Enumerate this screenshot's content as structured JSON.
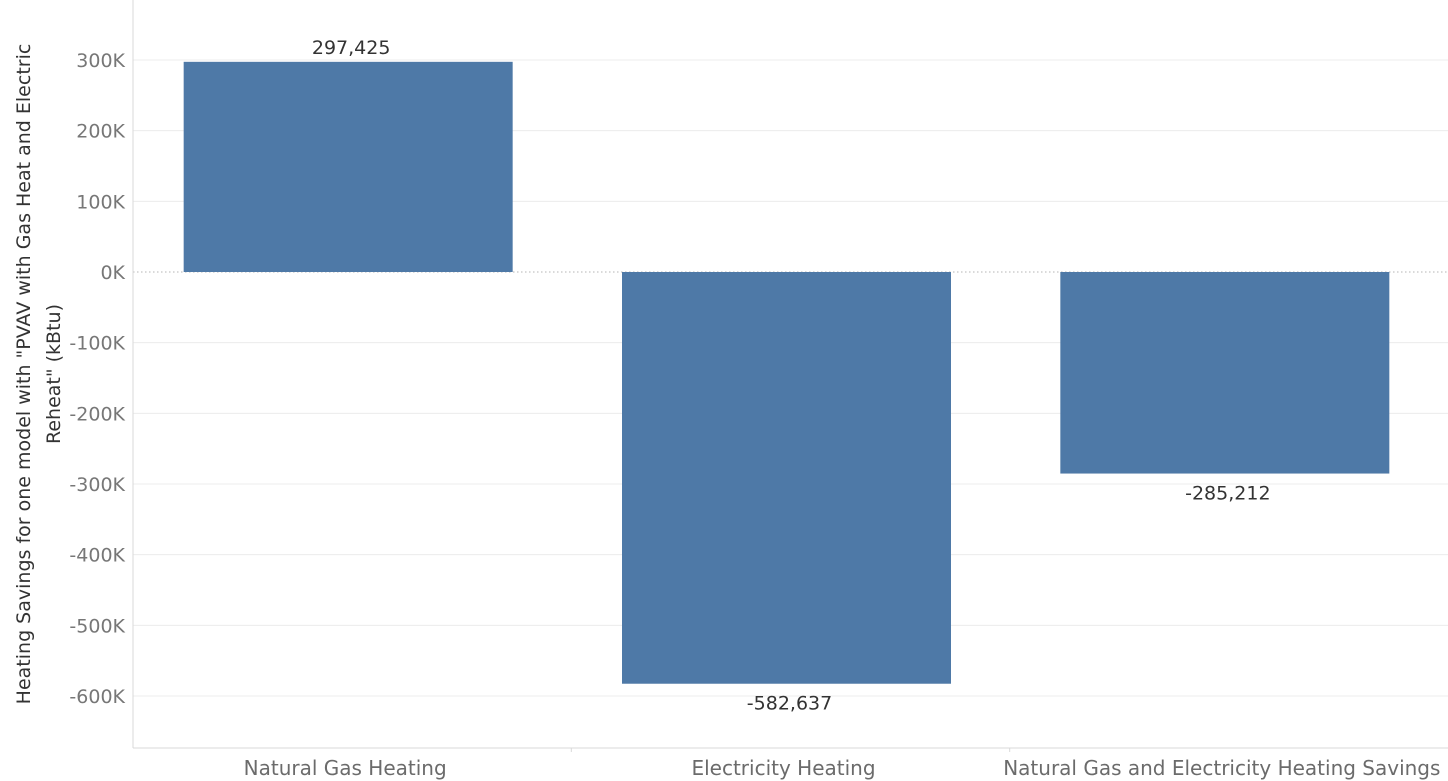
{
  "chart_data": {
    "type": "bar",
    "categories": [
      "Natural Gas Heating",
      "Electricity Heating",
      "Natural Gas and Electricity Heating Savings"
    ],
    "values": [
      297425,
      -582637,
      -285212
    ],
    "value_labels": [
      "297,425",
      "-582,637",
      "-285,212"
    ],
    "ylabel_lines": [
      "Heating Savings for one model with \"PVAV with Gas Heat and Electric",
      "Reheat\" (kBtu)"
    ],
    "ylim": [
      -680000,
      380000
    ],
    "yticks": [
      300000,
      200000,
      100000,
      0,
      -100000,
      -200000,
      -300000,
      -400000,
      -500000,
      -600000
    ],
    "ytick_labels": [
      "300K",
      "200K",
      "100K",
      "0K",
      "-100K",
      "-200K",
      "-300K",
      "-400K",
      "-500K",
      "-600K"
    ],
    "grid": true,
    "zero_line": "dotted",
    "bar_color": "#4e79a7",
    "grid_color": "#ececec",
    "axis_color": "#d9d9d9"
  }
}
